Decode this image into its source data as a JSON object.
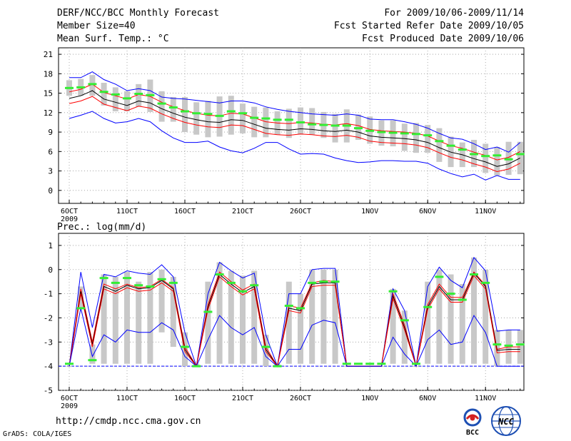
{
  "header": {
    "title": "DERF/NCC/BCC Monthly Forecast",
    "member_size": "Member Size=40",
    "variable_label": "Mean Surf. Temp.: °C",
    "period": "For 2009/10/06-2009/11/14",
    "started": "Fcst Started Refer Date 2009/10/05",
    "produced": "Fcst Produced Date 2009/10/06"
  },
  "precip_label": "Prec.: log(mm/d)",
  "footer": {
    "url": "http://cmdp.ncc.cma.gov.cn",
    "credit": "GrADS: COLA/IGES",
    "logo_bcc": "BCC",
    "logo_ncc": "NCC"
  },
  "colors": {
    "ensemble_max_min": "#0000ff",
    "ensemble_percentile": "#ff0000",
    "ensemble_mean": "#000000",
    "member_spread_bar": "#c8c8c8",
    "highlight_member": "#33ee33",
    "zero_line": "#0000ff"
  },
  "chart_data": [
    {
      "type": "line",
      "title": "Mean Surf. Temp.: °C",
      "xlabel": "",
      "ylabel": "°C",
      "ylim": [
        -2,
        22
      ],
      "yticks": [
        0,
        3,
        6,
        9,
        12,
        15,
        18,
        21
      ],
      "grid": true,
      "x_tick_labels": [
        "6OCT",
        "11OCT",
        "16OCT",
        "21OCT",
        "26OCT",
        "1NOV",
        "6NOV",
        "11NOV"
      ],
      "x_tick_days": [
        0,
        5,
        10,
        15,
        20,
        26,
        31,
        36
      ],
      "year_label": "2009",
      "days": [
        0,
        1,
        2,
        3,
        4,
        5,
        6,
        7,
        8,
        9,
        10,
        11,
        12,
        13,
        14,
        15,
        16,
        17,
        18,
        19,
        20,
        21,
        22,
        23,
        24,
        25,
        26,
        27,
        28,
        29,
        30,
        31,
        32,
        33,
        34,
        35,
        36,
        37,
        38,
        39
      ],
      "series": [
        {
          "name": "max",
          "values": [
            17.4,
            17.4,
            18.3,
            17.1,
            16.4,
            15.4,
            15.7,
            15.4,
            14.4,
            14.2,
            14.1,
            13.9,
            13.7,
            13.5,
            13.8,
            13.8,
            13.5,
            12.9,
            12.5,
            12.2,
            12.0,
            11.8,
            11.7,
            11.6,
            11.8,
            11.6,
            11.0,
            10.9,
            10.9,
            10.6,
            10.2,
            9.6,
            8.8,
            8.1,
            7.9,
            7.2,
            6.3,
            6.7,
            5.9,
            7.4
          ]
        },
        {
          "name": "p_upper",
          "values": [
            15.2,
            15.6,
            16.4,
            15.1,
            14.6,
            14.1,
            14.8,
            14.5,
            13.6,
            12.9,
            12.3,
            11.9,
            11.6,
            11.5,
            11.9,
            11.8,
            11.2,
            10.6,
            10.4,
            10.3,
            10.5,
            10.4,
            10.2,
            10.1,
            10.3,
            10.0,
            9.4,
            9.2,
            9.1,
            9.0,
            8.8,
            8.4,
            7.6,
            6.9,
            6.5,
            5.9,
            5.4,
            4.7,
            5.1,
            6.0
          ]
        },
        {
          "name": "mean",
          "values": [
            14.2,
            14.6,
            15.4,
            14.1,
            13.6,
            13.1,
            13.8,
            13.5,
            12.6,
            11.9,
            11.3,
            10.9,
            10.6,
            10.5,
            10.9,
            10.8,
            10.2,
            9.6,
            9.4,
            9.3,
            9.5,
            9.4,
            9.2,
            9.1,
            9.3,
            9.0,
            8.4,
            8.2,
            8.1,
            8.0,
            7.8,
            7.4,
            6.6,
            5.9,
            5.5,
            4.9,
            4.4,
            3.7,
            4.1,
            5.0
          ]
        },
        {
          "name": "p_lower",
          "values": [
            13.4,
            13.8,
            14.5,
            13.3,
            12.8,
            12.3,
            13.0,
            12.7,
            11.8,
            11.1,
            10.5,
            10.1,
            9.8,
            9.7,
            10.1,
            10.0,
            9.4,
            8.8,
            8.6,
            8.5,
            8.7,
            8.6,
            8.4,
            8.3,
            8.5,
            8.2,
            7.6,
            7.4,
            7.3,
            7.2,
            7.0,
            6.6,
            5.8,
            5.1,
            4.7,
            4.1,
            3.6,
            2.9,
            3.3,
            4.2
          ]
        },
        {
          "name": "min",
          "values": [
            11.1,
            11.6,
            12.2,
            11.1,
            10.4,
            10.6,
            11.1,
            10.6,
            9.2,
            8.1,
            7.4,
            7.4,
            7.6,
            6.7,
            6.1,
            5.8,
            6.5,
            7.4,
            7.4,
            6.4,
            5.6,
            5.7,
            5.6,
            5.0,
            4.6,
            4.3,
            4.4,
            4.6,
            4.6,
            4.5,
            4.5,
            4.2,
            3.3,
            2.6,
            2.1,
            2.5,
            1.6,
            2.3,
            1.7,
            1.7
          ]
        }
      ],
      "spread": {
        "high": [
          17.0,
          17.2,
          17.8,
          16.6,
          15.9,
          15.3,
          16.4,
          17.1,
          15.3,
          14.4,
          14.4,
          13.6,
          13.8,
          14.5,
          14.6,
          13.4,
          12.9,
          12.8,
          12.2,
          12.6,
          12.8,
          12.7,
          12.1,
          11.8,
          12.5,
          11.7,
          11.4,
          10.8,
          10.8,
          10.3,
          10.4,
          10.1,
          9.6,
          8.3,
          7.4,
          7.8,
          7.2,
          6.7,
          7.5,
          7.5
        ],
        "low": [
          14.6,
          14.6,
          14.6,
          13.1,
          12.2,
          12.2,
          12.9,
          12.1,
          10.6,
          10.6,
          9.0,
          8.6,
          8.2,
          8.3,
          8.6,
          8.8,
          8.2,
          8.2,
          8.6,
          8.1,
          8.6,
          8.6,
          8.1,
          7.4,
          7.4,
          7.8,
          7.2,
          6.9,
          6.8,
          6.1,
          5.8,
          5.8,
          4.4,
          3.6,
          3.6,
          3.6,
          2.7,
          2.3,
          2.4,
          2.5
        ]
      },
      "highlight": [
        15.8,
        15.9,
        16.4,
        15.2,
        14.8,
        14.2,
        14.9,
        14.7,
        13.4,
        12.8,
        12.2,
        11.9,
        11.8,
        11.5,
        12.2,
        11.9,
        11.2,
        11.1,
        10.9,
        10.9,
        10.5,
        10.2,
        10.1,
        10.0,
        10.0,
        9.6,
        9.2,
        9.0,
        8.9,
        8.8,
        8.7,
        8.5,
        7.6,
        6.9,
        6.3,
        5.6,
        5.3,
        5.4,
        4.8,
        5.6
      ]
    },
    {
      "type": "line",
      "title": "Prec.: log(mm/d)",
      "xlabel": "",
      "ylabel": "log(mm/d)",
      "ylim": [
        -5,
        1.5
      ],
      "yticks": [
        -5,
        -4,
        -3,
        -2,
        -1,
        0,
        1
      ],
      "grid": true,
      "x_tick_labels": [
        "6OCT",
        "11OCT",
        "16OCT",
        "21OCT",
        "26OCT",
        "1NOV",
        "6NOV",
        "11NOV"
      ],
      "x_tick_days": [
        0,
        5,
        10,
        15,
        20,
        26,
        31,
        36
      ],
      "year_label": "2009",
      "baseline": -4,
      "days": [
        0,
        1,
        2,
        3,
        4,
        5,
        6,
        7,
        8,
        9,
        10,
        11,
        12,
        13,
        14,
        15,
        16,
        17,
        18,
        19,
        20,
        21,
        22,
        23,
        24,
        25,
        26,
        27,
        28,
        29,
        30,
        31,
        32,
        33,
        34,
        35,
        36,
        37,
        38,
        39
      ],
      "series": [
        {
          "name": "max",
          "values": [
            -4.0,
            -0.1,
            -2.4,
            -0.2,
            -0.3,
            -0.05,
            -0.15,
            -0.2,
            0.2,
            -0.3,
            -2.6,
            -4.0,
            -1.0,
            0.3,
            -0.05,
            -0.35,
            -0.15,
            -2.7,
            -4.0,
            -1.0,
            -1.0,
            0.0,
            0.05,
            0.05,
            -4.0,
            -4.0,
            -4.0,
            -4.0,
            -0.8,
            -1.7,
            -4.0,
            -0.7,
            0.1,
            -0.45,
            -0.75,
            0.5,
            -0.05,
            -2.55,
            -2.5,
            -2.5
          ]
        },
        {
          "name": "p_upper",
          "values": [
            -4.0,
            -0.8,
            -3.0,
            -0.6,
            -0.8,
            -0.6,
            -0.75,
            -0.7,
            -0.4,
            -0.75,
            -3.2,
            -4.0,
            -1.45,
            -0.1,
            -0.5,
            -0.85,
            -0.6,
            -3.2,
            -4.0,
            -1.5,
            -1.6,
            -0.55,
            -0.45,
            -0.5,
            -4.0,
            -4.0,
            -4.0,
            -4.0,
            -1.0,
            -2.3,
            -4.0,
            -1.45,
            -0.6,
            -1.15,
            -1.15,
            -0.1,
            -0.65,
            -3.3,
            -3.2,
            -3.2
          ]
        },
        {
          "name": "mean",
          "values": [
            -4.0,
            -0.9,
            -3.1,
            -0.7,
            -0.9,
            -0.65,
            -0.8,
            -0.75,
            -0.45,
            -0.8,
            -3.3,
            -4.0,
            -1.55,
            -0.2,
            -0.6,
            -0.95,
            -0.7,
            -3.3,
            -4.0,
            -1.6,
            -1.7,
            -0.6,
            -0.55,
            -0.55,
            -4.0,
            -4.0,
            -4.0,
            -4.0,
            -1.1,
            -2.4,
            -4.0,
            -1.55,
            -0.7,
            -1.25,
            -1.25,
            -0.15,
            -0.7,
            -3.35,
            -3.3,
            -3.3
          ]
        },
        {
          "name": "p_lower",
          "values": [
            -4.0,
            -1.0,
            -3.2,
            -0.8,
            -1.0,
            -0.75,
            -0.9,
            -0.85,
            -0.55,
            -0.9,
            -3.4,
            -4.0,
            -1.65,
            -0.3,
            -0.7,
            -1.05,
            -0.8,
            -3.4,
            -4.0,
            -1.7,
            -1.8,
            -0.7,
            -0.65,
            -0.65,
            -4.0,
            -4.0,
            -4.0,
            -4.0,
            -1.2,
            -2.5,
            -4.0,
            -1.65,
            -0.8,
            -1.35,
            -1.35,
            -0.25,
            -0.8,
            -3.45,
            -3.4,
            -3.4
          ]
        },
        {
          "name": "min",
          "values": [
            -4.0,
            -1.6,
            -3.6,
            -2.7,
            -3.0,
            -2.5,
            -2.6,
            -2.6,
            -2.2,
            -2.5,
            -3.6,
            -4.0,
            -2.9,
            -1.9,
            -2.4,
            -2.7,
            -2.4,
            -3.6,
            -4.0,
            -3.3,
            -3.3,
            -2.3,
            -2.1,
            -2.2,
            -4.0,
            -4.0,
            -4.0,
            -4.0,
            -2.8,
            -3.5,
            -4.0,
            -2.9,
            -2.5,
            -3.1,
            -3.0,
            -1.9,
            -2.6,
            -4.0,
            -4.0,
            -4.0
          ]
        }
      ],
      "spread": {
        "high": [
          -4.0,
          -0.7,
          -3.1,
          -0.2,
          -0.3,
          -0.1,
          -0.5,
          -0.1,
          0.0,
          -0.3,
          -2.6,
          -3.9,
          -0.5,
          0.3,
          -0.05,
          -0.25,
          -0.05,
          -2.7,
          -3.9,
          -0.5,
          -1.0,
          0.0,
          0.0,
          0.0,
          -4.0,
          -4.0,
          -4.0,
          -4.0,
          -0.8,
          -1.7,
          -4.0,
          -0.5,
          0.0,
          -0.2,
          -0.6,
          0.5,
          0.0,
          -2.5,
          -2.5,
          -2.5
        ],
        "low": [
          -4.0,
          -1.6,
          -3.9,
          -3.9,
          -3.9,
          -3.9,
          -3.9,
          -3.9,
          -2.6,
          -3.2,
          -4.0,
          -4.0,
          -3.9,
          -3.9,
          -3.9,
          -3.9,
          -3.9,
          -4.0,
          -4.0,
          -3.9,
          -3.9,
          -3.9,
          -3.9,
          -3.9,
          -4.0,
          -4.0,
          -4.0,
          -4.0,
          -3.9,
          -3.9,
          -4.0,
          -3.9,
          -3.9,
          -3.9,
          -3.9,
          -3.9,
          -3.9,
          -4.0,
          -3.9,
          -3.9
        ]
      },
      "highlight": [
        -3.9,
        -1.6,
        -3.75,
        -0.35,
        -0.55,
        -0.35,
        -0.65,
        -0.7,
        -0.4,
        -0.55,
        -3.2,
        -4.0,
        -1.75,
        -0.2,
        -0.55,
        -0.9,
        -0.65,
        -3.2,
        -4.0,
        -1.5,
        -1.6,
        -0.55,
        -0.5,
        -0.5,
        -3.9,
        -3.9,
        -3.9,
        -3.9,
        -0.9,
        -2.1,
        -3.9,
        -1.55,
        -0.3,
        -1.0,
        -1.25,
        -0.2,
        -0.55,
        -3.1,
        -3.15,
        -3.1
      ]
    }
  ]
}
